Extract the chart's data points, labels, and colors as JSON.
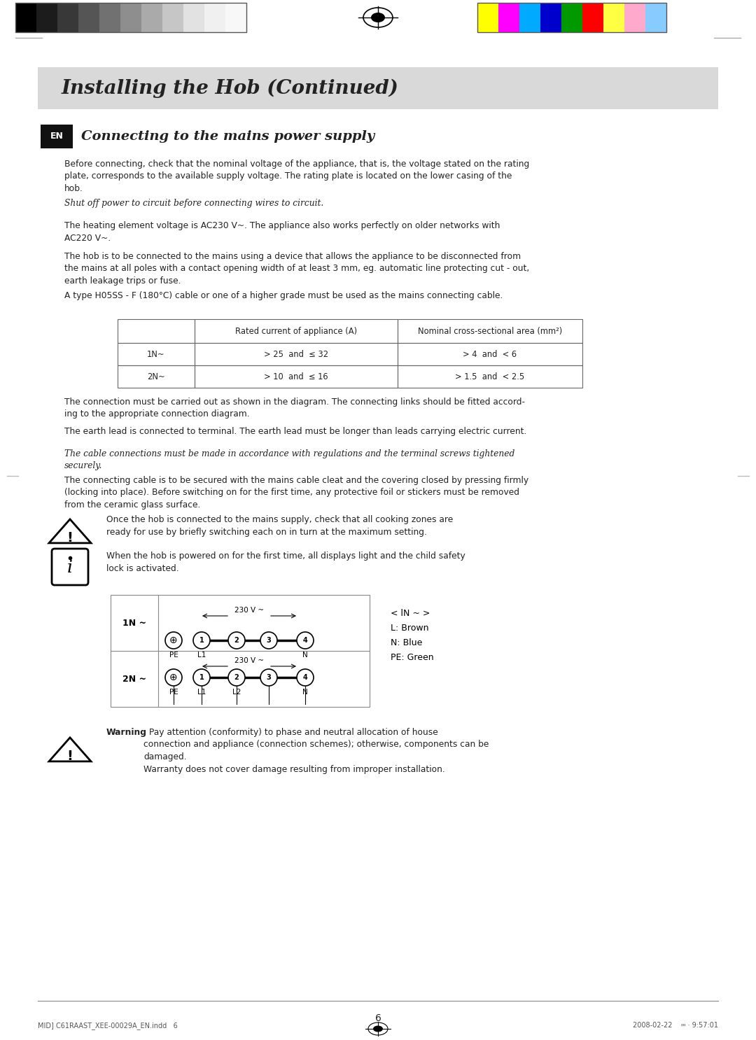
{
  "title_banner": "Installing the Hob (Continued)",
  "section_label": "EN",
  "section_heading": "Connecting to the mains power supply",
  "para1": "Before connecting, check that the nominal voltage of the appliance, that is, the voltage stated on the rating\nplate, corresponds to the available supply voltage. The rating plate is located on the lower casing of the\nhob.",
  "italic1": "Shut off power to circuit before connecting wires to circuit.",
  "para2": "The heating element voltage is AC230 V~. The appliance also works perfectly on older networks with\nAC220 V~.",
  "para3": "The hob is to be connected to the mains using a device that allows the appliance to be disconnected from\nthe mains at all poles with a contact opening width of at least 3 mm, eg. automatic line protecting cut - out,\nearth leakage trips or fuse.",
  "para4": "A type H05SS - F (180°C) cable or one of a higher grade must be used as the mains connecting cable.",
  "table_col1_header": "Rated current of appliance (A)",
  "table_col2_header": "Nominal cross-sectional area (mm²)",
  "table_row1_label": "1N~",
  "table_row1_col1": "> 25  and  ≤ 32",
  "table_row1_col2": "> 4  and  < 6",
  "table_row2_label": "2N~",
  "table_row2_col1": "> 10  and  ≤ 16",
  "table_row2_col2": "> 1.5  and  < 2.5",
  "para5": "The connection must be carried out as shown in the diagram. The connecting links should be fitted accord-\ning to the appropriate connection diagram.",
  "para6": "The earth lead is connected to terminal. The earth lead must be longer than leads carrying electric current.",
  "italic2": "The cable connections must be made in accordance with regulations and the terminal screws tightened\nsecurely.",
  "para7": "The connecting cable is to be secured with the mains cable cleat and the covering closed by pressing firmly\n(locking into place). Before switching on for the first time, any protective foil or stickers must be removed\nfrom the ceramic glass surface.",
  "warning1": "Once the hob is connected to the mains supply, check that all cooking zones are\nready for use by briefly switching each on in turn at the maximum setting.",
  "info1": "When the hob is powered on for the first time, all displays light and the child safety\nlock is activated.",
  "diagram_1n_label": "1N ~",
  "diagram_2n_label": "2N ~",
  "diagram_voltage": "230 V ~",
  "diagram_legend": "< lN ~ >\nL: Brown\nN: Blue\nPE: Green",
  "warning2_bold": "Warning",
  "warning2": ": Pay attention (conformity) to phase and neutral allocation of house\nconnection and appliance (connection schemes); otherwise, components can be\ndamaged.\nWarranty does not cover damage resulting from improper installation.",
  "page_number": "6",
  "footer_left": "MID] C61RAAST_XEE-00029A_EN.indd   6",
  "footer_right": "2008-02-22    ייי · 9:57:01",
  "bg_color": "#ffffff",
  "banner_bg": "#d9d9d9",
  "body_text_color": "#222222",
  "label_bg": "#111111",
  "label_text_color": "#ffffff",
  "table_border_color": "#666666",
  "gray_colors": [
    "#000000",
    "#1c1c1c",
    "#383838",
    "#555555",
    "#717171",
    "#8e8e8e",
    "#aaaaaa",
    "#c6c6c6",
    "#e2e2e2",
    "#f0f0f0",
    "#f8f8f8"
  ],
  "color_strip": [
    "#ffff00",
    "#ff00ff",
    "#00aaff",
    "#0000cc",
    "#009900",
    "#ff0000",
    "#ffff44",
    "#ffaacc",
    "#88ccff"
  ]
}
